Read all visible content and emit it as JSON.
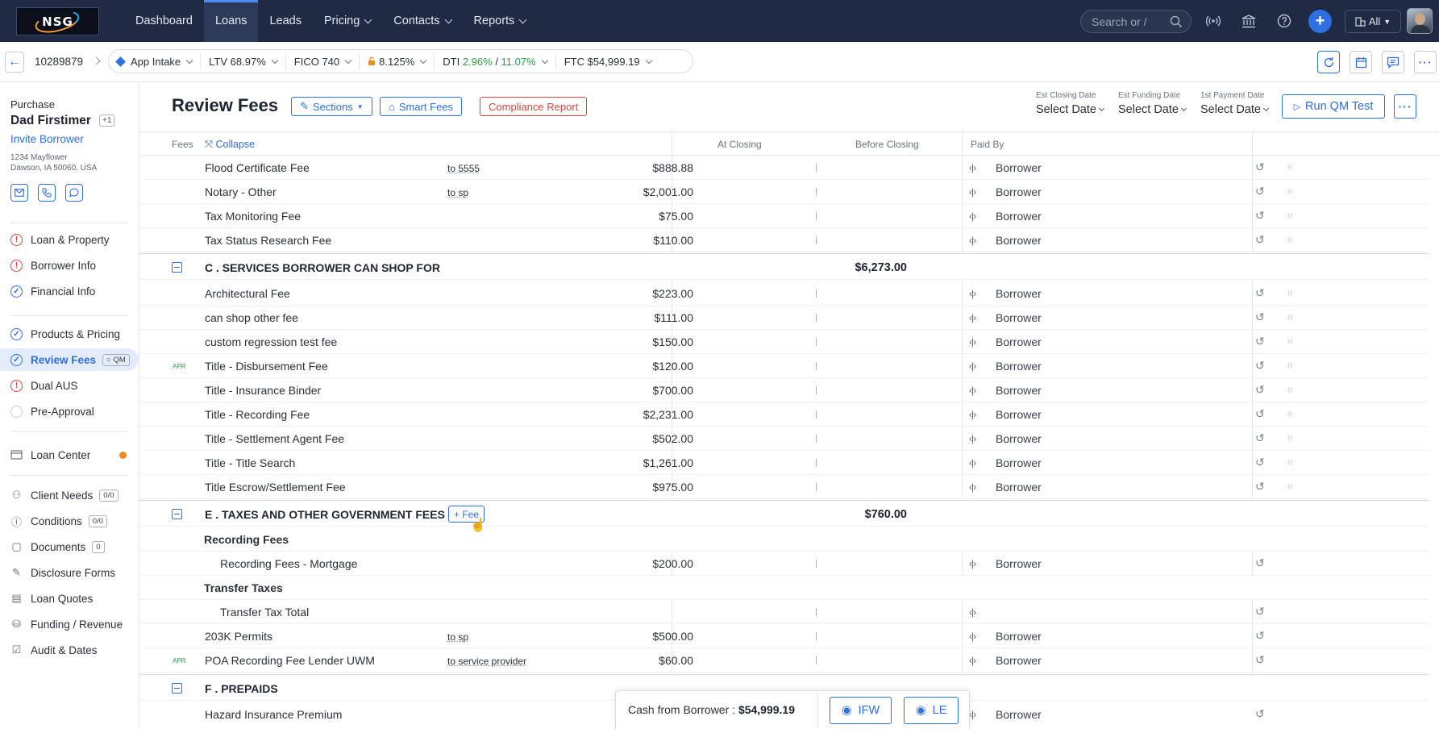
{
  "topnav": {
    "logo": "NSG",
    "tabs": [
      {
        "label": "Dashboard",
        "has_menu": false
      },
      {
        "label": "Loans",
        "has_menu": false,
        "active": true
      },
      {
        "label": "Leads",
        "has_menu": false
      },
      {
        "label": "Pricing",
        "has_menu": true
      },
      {
        "label": "Contacts",
        "has_menu": true
      },
      {
        "label": "Reports",
        "has_menu": true
      }
    ],
    "search_placeholder": "Search or /",
    "all_label": "All",
    "icons": [
      "broadcast-icon",
      "bank-icon",
      "help-icon",
      "plus-icon"
    ]
  },
  "loanbar": {
    "loan_number": "10289879",
    "status": "App Intake",
    "ltv_label": "LTV",
    "ltv_value": "68.97%",
    "fico_label": "FICO",
    "fico_value": "740",
    "rate": "8.125%",
    "dti_label": "DTI",
    "dti_front": "2.96%",
    "dti_sep": " / ",
    "dti_back": "11.07%",
    "ftc_label": "FTC",
    "ftc_value": "$54,999.19"
  },
  "sidebar": {
    "loan_type": "Purchase",
    "borrower_name": "Dad Firstimer",
    "co_borrowers": "+1",
    "invite_label": "Invite Borrower",
    "address_line1": "1234 Mayflower",
    "address_line2": "Dawson, IA 50060, USA",
    "workflow": [
      {
        "label": "Loan & Property",
        "status": "warn"
      },
      {
        "label": "Borrower Info",
        "status": "warn"
      },
      {
        "label": "Financial Info",
        "status": "done"
      },
      {
        "label": "Products & Pricing",
        "status": "done"
      },
      {
        "label": "Review Fees",
        "status": "done",
        "tag": "QM",
        "active": true
      },
      {
        "label": "Dual AUS",
        "status": "warn"
      },
      {
        "label": "Pre-Approval",
        "status": "empty"
      }
    ],
    "loan_center_label": "Loan Center",
    "tools": [
      {
        "label": "Client Needs",
        "count": "0/0",
        "icon": "client-needs-icon"
      },
      {
        "label": "Conditions",
        "count": "0/0",
        "icon": "conditions-icon"
      },
      {
        "label": "Documents",
        "count": "0",
        "icon": "documents-icon"
      },
      {
        "label": "Disclosure Forms",
        "icon": "disclosure-icon"
      },
      {
        "label": "Loan Quotes",
        "icon": "quotes-icon"
      },
      {
        "label": "Funding / Revenue",
        "icon": "funding-icon"
      },
      {
        "label": "Audit & Dates",
        "icon": "audit-icon"
      }
    ]
  },
  "main": {
    "title": "Review Fees",
    "sections_btn": "Sections",
    "smart_fees_btn": "Smart Fees",
    "compliance_btn": "Compliance Report",
    "est_closing_label": "Est Closing Date",
    "est_closing_value": "Select Date",
    "est_funding_label": "Est Funding Date",
    "est_funding_value": "Select Date",
    "first_payment_label": "1st Payment Date",
    "first_payment_value": "Select Date",
    "run_qm_btn": "Run QM Test",
    "columns": {
      "fees": "Fees",
      "collapse": "Collapse",
      "at_closing": "At Closing",
      "before_closing": "Before Closing",
      "paid_by": "Paid By"
    },
    "rows_top": [
      {
        "name": "Flood Certificate Fee",
        "note": "to 5555",
        "amount": "$888.88",
        "payer": "Borrower"
      },
      {
        "name": "Notary - Other",
        "note": "to sp",
        "amount": "$2,001.00",
        "payer": "Borrower"
      },
      {
        "name": "Tax Monitoring Fee",
        "note": "",
        "amount": "$75.00",
        "payer": "Borrower"
      },
      {
        "name": "Tax Status Research Fee",
        "note": "",
        "amount": "$110.00",
        "payer": "Borrower"
      }
    ],
    "section_c": {
      "title": "C . SERVICES BORROWER CAN SHOP FOR",
      "total": "$6,273.00",
      "rows": [
        {
          "name": "Architectural Fee",
          "amount": "$223.00",
          "payer": "Borrower"
        },
        {
          "name": "can shop other fee",
          "amount": "$111.00",
          "payer": "Borrower"
        },
        {
          "name": "custom regression test fee",
          "amount": "$150.00",
          "payer": "Borrower"
        },
        {
          "name": "Title - Disbursement Fee",
          "amount": "$120.00",
          "payer": "Borrower",
          "apr": "APR"
        },
        {
          "name": "Title - Insurance Binder",
          "amount": "$700.00",
          "payer": "Borrower"
        },
        {
          "name": "Title - Recording Fee",
          "amount": "$2,231.00",
          "payer": "Borrower"
        },
        {
          "name": "Title - Settlement Agent Fee",
          "amount": "$502.00",
          "payer": "Borrower"
        },
        {
          "name": "Title - Title Search",
          "amount": "$1,261.00",
          "payer": "Borrower"
        },
        {
          "name": "Title Escrow/Settlement Fee",
          "amount": "$975.00",
          "payer": "Borrower"
        }
      ]
    },
    "section_e": {
      "title": "E . TAXES AND OTHER GOVERNMENT FEES",
      "add_fee": "+ Fee",
      "total": "$760.00",
      "sub_recording": "Recording Fees",
      "recording_row": {
        "name": "Recording Fees - Mortgage",
        "amount": "$200.00",
        "payer": "Borrower"
      },
      "sub_transfer": "Transfer Taxes",
      "transfer_row": {
        "name": "Transfer Tax Total",
        "amount": "",
        "payer": ""
      },
      "rows": [
        {
          "name": "203K Permits",
          "note": "to sp",
          "amount": "$500.00",
          "payer": "Borrower"
        },
        {
          "name": "POA Recording Fee Lender UWM",
          "note": "to service provider",
          "amount": "$60.00",
          "payer": "Borrower",
          "apr": "APR"
        }
      ]
    },
    "section_f": {
      "title": "F . PREPAIDS",
      "rows": [
        {
          "name": "Hazard Insurance Premium",
          "payer": "Borrower"
        }
      ]
    }
  },
  "footer": {
    "cash_label": "Cash from Borrower : ",
    "cash_value": "$54,999.19",
    "ifw_btn": "IFW",
    "le_btn": "LE"
  },
  "colors": {
    "nav_bg": "#1f2a44",
    "accent": "#2f6fe0",
    "warn": "#d9443f",
    "positive": "#2e9a4b",
    "notice": "#f08c21"
  }
}
